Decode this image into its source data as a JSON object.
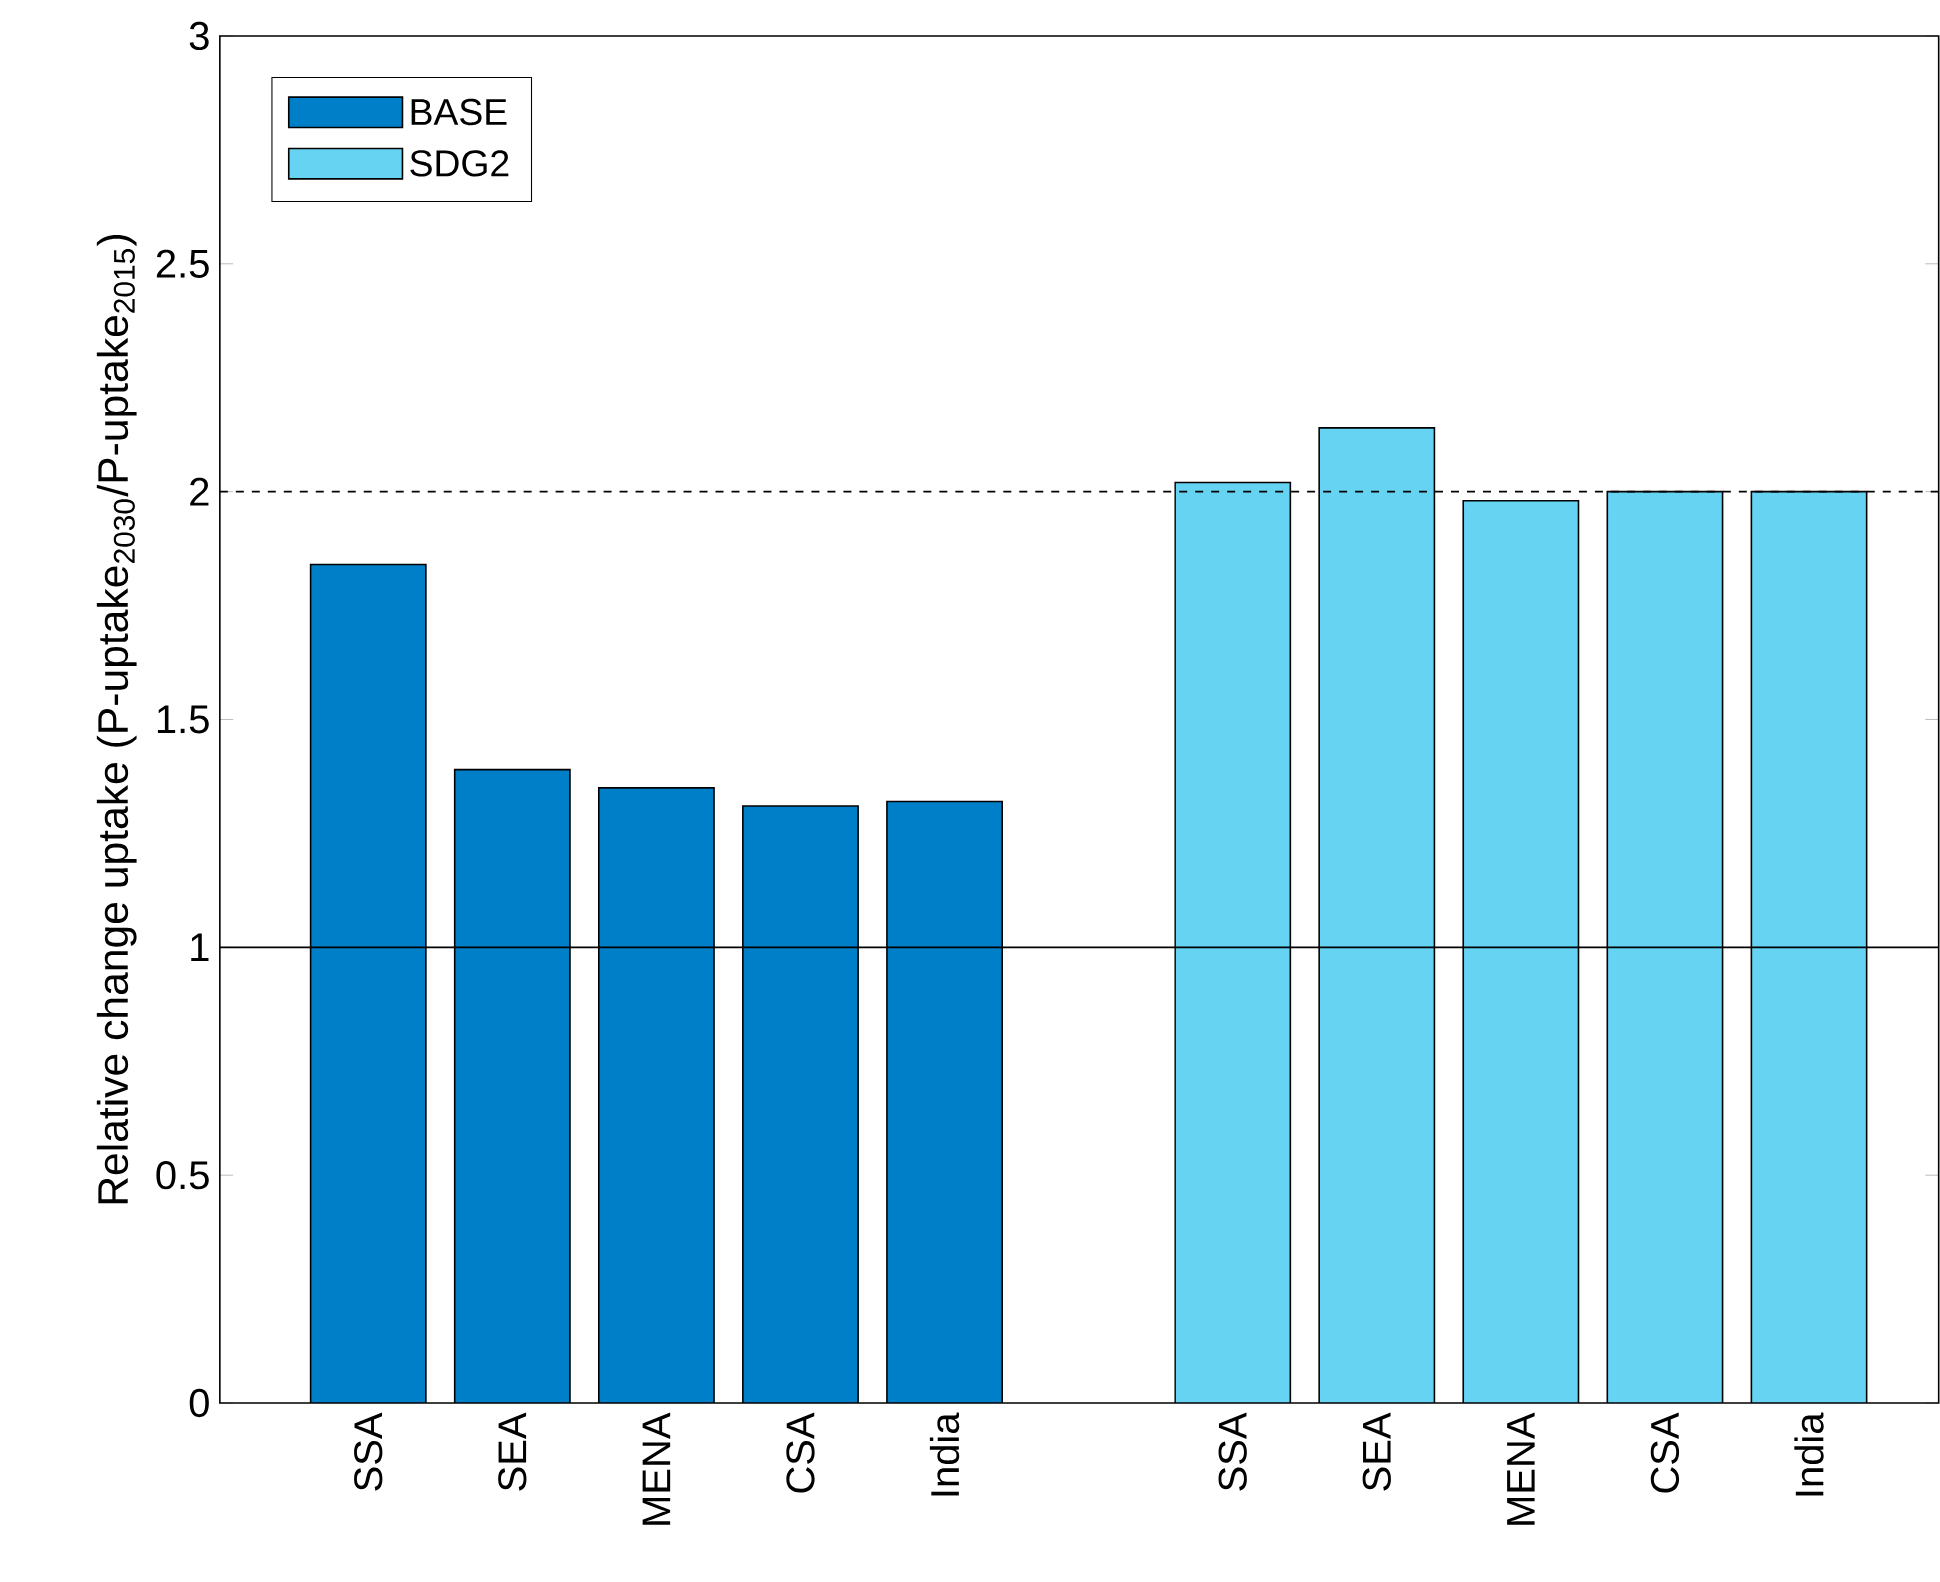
{
  "chart_data": {
    "type": "bar",
    "ylabel": "Relative change uptake (P-uptake$_{2030}$/P-uptake$_{2015}$)",
    "categories": [
      "SSA",
      "SEA",
      "MENA",
      "CSA",
      "India",
      null,
      "SSA",
      "SEA",
      "MENA",
      "CSA",
      "India"
    ],
    "series": [
      {
        "name": "BASE",
        "color": "#007fc9",
        "values": [
          1.84,
          1.39,
          1.35,
          1.31,
          1.32,
          null,
          null,
          null,
          null,
          null,
          null
        ]
      },
      {
        "name": "SDG2",
        "color": "#66d3f2",
        "values": [
          null,
          null,
          null,
          null,
          null,
          null,
          2.02,
          2.14,
          1.98,
          2.0,
          2.0
        ]
      }
    ],
    "ylim": [
      0,
      3
    ],
    "yticks": [
      0,
      0.5,
      1,
      1.5,
      2,
      2.5,
      3
    ],
    "ref_lines": [
      {
        "axis": "y",
        "value": 1,
        "line_style": "solid"
      },
      {
        "axis": "y",
        "value": 2,
        "line_style": "dashed"
      }
    ],
    "legend": "top left",
    "grid": false
  }
}
